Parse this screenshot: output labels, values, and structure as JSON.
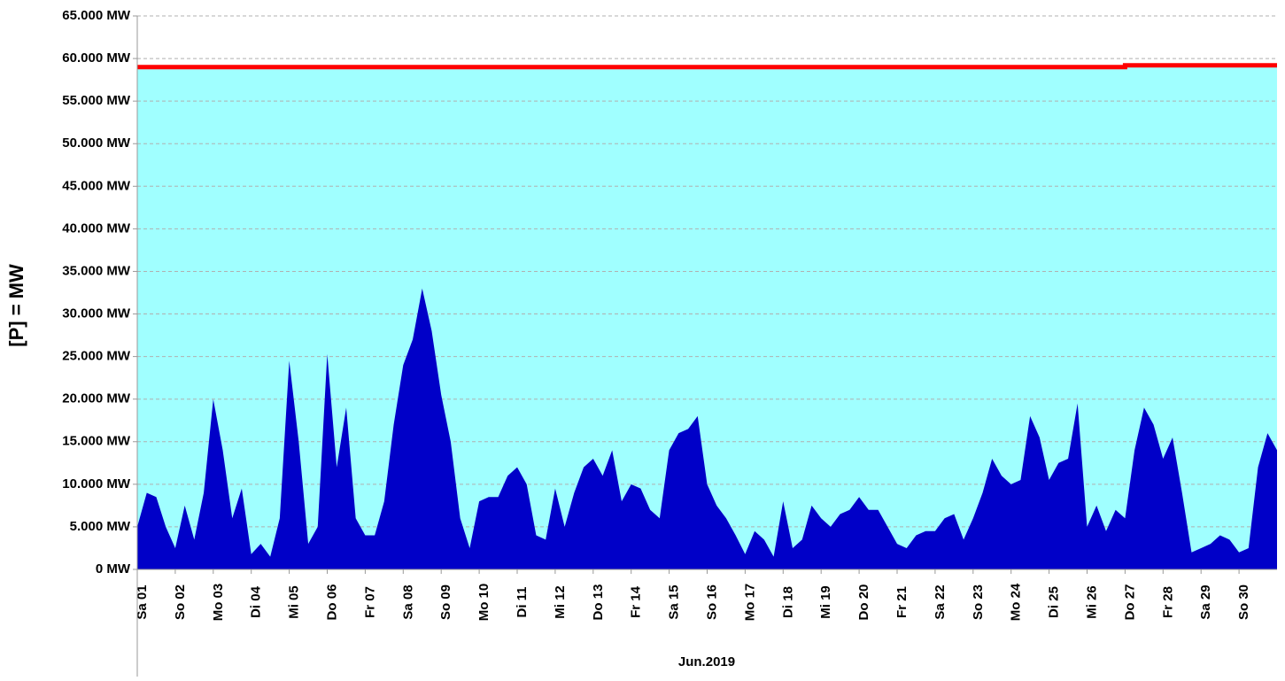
{
  "chart_data": {
    "type": "area",
    "y_label": "[P] = MW",
    "x_label": "Jun.2019",
    "xlim": [
      0,
      30
    ],
    "xticks": [
      {
        "value": 0,
        "label": "Sa 01"
      },
      {
        "value": 1,
        "label": "So 02"
      },
      {
        "value": 2,
        "label": "Mo 03"
      },
      {
        "value": 3,
        "label": "Di 04"
      },
      {
        "value": 4,
        "label": "Mi 05"
      },
      {
        "value": 5,
        "label": "Do 06"
      },
      {
        "value": 6,
        "label": "Fr 07"
      },
      {
        "value": 7,
        "label": "Sa 08"
      },
      {
        "value": 8,
        "label": "So 09"
      },
      {
        "value": 9,
        "label": "Mo 10"
      },
      {
        "value": 10,
        "label": "Di 11"
      },
      {
        "value": 11,
        "label": "Mi 12"
      },
      {
        "value": 12,
        "label": "Do 13"
      },
      {
        "value": 13,
        "label": "Fr 14"
      },
      {
        "value": 14,
        "label": "Sa 15"
      },
      {
        "value": 15,
        "label": "So 16"
      },
      {
        "value": 16,
        "label": "Mo 17"
      },
      {
        "value": 17,
        "label": "Di 18"
      },
      {
        "value": 18,
        "label": "Mi 19"
      },
      {
        "value": 19,
        "label": "Do 20"
      },
      {
        "value": 20,
        "label": "Fr 21"
      },
      {
        "value": 21,
        "label": "Sa 22"
      },
      {
        "value": 22,
        "label": "So 23"
      },
      {
        "value": 23,
        "label": "Mo 24"
      },
      {
        "value": 24,
        "label": "Di 25"
      },
      {
        "value": 25,
        "label": "Mi 26"
      },
      {
        "value": 26,
        "label": "Do 27"
      },
      {
        "value": 27,
        "label": "Fr 28"
      },
      {
        "value": 28,
        "label": "Sa 29"
      },
      {
        "value": 29,
        "label": "So 30"
      }
    ],
    "ylim": [
      0,
      65000
    ],
    "yticks": [
      {
        "value": 0,
        "label": "0 MW"
      },
      {
        "value": 5000,
        "label": "5.000 MW"
      },
      {
        "value": 10000,
        "label": "10.000 MW"
      },
      {
        "value": 15000,
        "label": "15.000 MW"
      },
      {
        "value": 20000,
        "label": "20.000 MW"
      },
      {
        "value": 25000,
        "label": "25.000 MW"
      },
      {
        "value": 30000,
        "label": "30.000 MW"
      },
      {
        "value": 35000,
        "label": "35.000 MW"
      },
      {
        "value": 40000,
        "label": "40.000 MW"
      },
      {
        "value": 45000,
        "label": "45.000 MW"
      },
      {
        "value": 50000,
        "label": "50.000 MW"
      },
      {
        "value": 55000,
        "label": "55.000 MW"
      },
      {
        "value": 60000,
        "label": "60.000 MW"
      },
      {
        "value": 65000,
        "label": "65.000 MW"
      }
    ],
    "grid": true,
    "series": [
      {
        "color": "#0000c8",
        "x": [
          0,
          0.25,
          0.5,
          0.75,
          1,
          1.25,
          1.5,
          1.75,
          2,
          2.25,
          2.5,
          2.75,
          3,
          3.25,
          3.5,
          3.75,
          4,
          4.25,
          4.5,
          4.75,
          5,
          5.25,
          5.5,
          5.75,
          6,
          6.25,
          6.5,
          6.75,
          7,
          7.25,
          7.5,
          7.75,
          8,
          8.25,
          8.5,
          8.75,
          9,
          9.25,
          9.5,
          9.75,
          10,
          10.25,
          10.5,
          10.75,
          11,
          11.25,
          11.5,
          11.75,
          12,
          12.25,
          12.5,
          12.75,
          13,
          13.25,
          13.5,
          13.75,
          14,
          14.25,
          14.5,
          14.75,
          15,
          15.25,
          15.5,
          15.75,
          16,
          16.25,
          16.5,
          16.75,
          17,
          17.25,
          17.5,
          17.75,
          18,
          18.25,
          18.5,
          18.75,
          19,
          19.25,
          19.5,
          19.75,
          20,
          20.25,
          20.5,
          20.75,
          21,
          21.25,
          21.5,
          21.75,
          22,
          22.25,
          22.5,
          22.75,
          23,
          23.25,
          23.5,
          23.75,
          24,
          24.25,
          24.5,
          24.75,
          25,
          25.25,
          25.5,
          25.75,
          26,
          26.25,
          26.5,
          26.75,
          27,
          27.25,
          27.5,
          27.75,
          28,
          28.25,
          28.5,
          28.75,
          29,
          29.25,
          29.5,
          29.75,
          30
        ],
        "values": [
          5000,
          9000,
          8500,
          5000,
          2500,
          7500,
          3500,
          9000,
          20000,
          14000,
          6000,
          9500,
          1800,
          3000,
          1500,
          6000,
          24500,
          15000,
          3000,
          5000,
          25300,
          12000,
          19000,
          6000,
          4000,
          4000,
          8000,
          17000,
          24000,
          27000,
          33000,
          28000,
          20500,
          15000,
          6000,
          2500,
          8000,
          8500,
          8500,
          11000,
          12000,
          10000,
          4000,
          3500,
          9500,
          5000,
          9000,
          12000,
          13000,
          11000,
          14000,
          8000,
          10000,
          9500,
          7000,
          6000,
          14000,
          16000,
          16500,
          18000,
          10000,
          7500,
          6000,
          4000,
          1800,
          4500,
          3500,
          1500,
          8000,
          2500,
          3500,
          7500,
          6000,
          5000,
          6500,
          7000,
          8500,
          7000,
          7000,
          5000,
          3000,
          2500,
          4000,
          4500,
          4500,
          6000,
          6500,
          3500,
          6000,
          9000,
          13000,
          11000,
          10000,
          10500,
          18000,
          15500,
          10500,
          12500,
          13000,
          19500,
          5000,
          7500,
          4500,
          7000,
          6000,
          14000,
          19000,
          17000,
          13000,
          15500,
          9000,
          2000,
          2500,
          3000,
          4000,
          3500,
          2000,
          2500,
          12000,
          16000,
          14000
        ]
      },
      {
        "color": "#ff0000",
        "fill": "#a0ffff",
        "x": [
          0,
          26,
          26,
          30
        ],
        "values": [
          59000,
          59000,
          59200,
          59200
        ]
      }
    ]
  }
}
